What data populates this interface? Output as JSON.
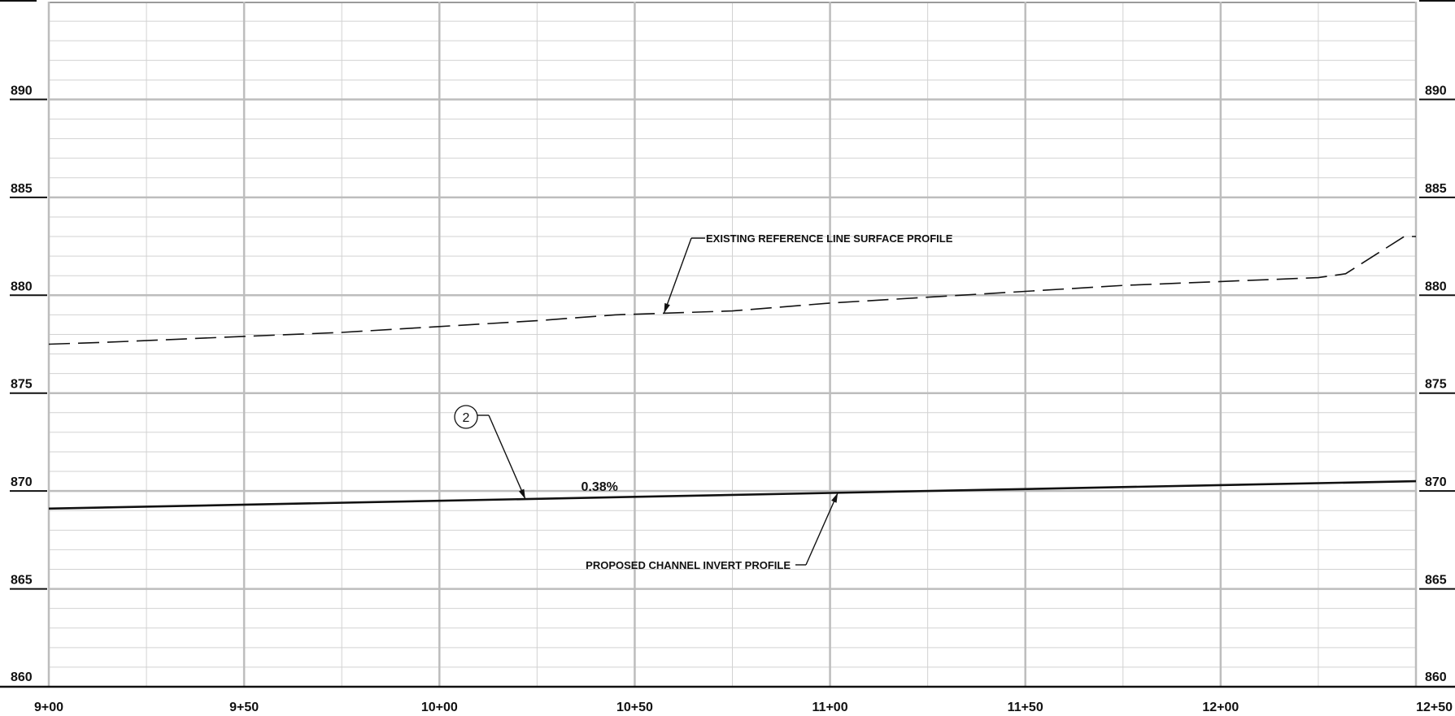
{
  "chart_data": {
    "type": "line",
    "title": "",
    "xlabel": "",
    "ylabel": "",
    "x_ticks": [
      {
        "sta": 900,
        "label": "9+00"
      },
      {
        "sta": 950,
        "label": "9+50"
      },
      {
        "sta": 1000,
        "label": "10+00"
      },
      {
        "sta": 1050,
        "label": "10+50"
      },
      {
        "sta": 1100,
        "label": "11+00"
      },
      {
        "sta": 1150,
        "label": "11+50"
      },
      {
        "sta": 1200,
        "label": "12+00"
      },
      {
        "sta": 1250,
        "label": "12+50"
      }
    ],
    "y_ticks": [
      860,
      865,
      870,
      875,
      880,
      885,
      890
    ],
    "xlim": [
      900,
      1250
    ],
    "ylim": [
      860,
      895
    ],
    "minor_x_step": 25,
    "minor_y_step": 1,
    "grid": true,
    "series": [
      {
        "name": "EXISTING REFERENCE LINE SURFACE PROFILE",
        "style": "dashed",
        "x": [
          900,
          915,
          950,
          975,
          1000,
          1025,
          1045,
          1075,
          1100,
          1125,
          1150,
          1175,
          1200,
          1225,
          1232,
          1247,
          1250
        ],
        "y": [
          877.5,
          877.6,
          877.9,
          878.1,
          878.4,
          878.7,
          879.0,
          879.2,
          879.6,
          879.9,
          880.2,
          880.5,
          880.7,
          880.9,
          881.1,
          883.0,
          883.0
        ]
      },
      {
        "name": "PROPOSED CHANNEL INVERT PROFILE",
        "style": "solid",
        "x": [
          900,
          1250
        ],
        "y": [
          869.1,
          870.5
        ]
      }
    ],
    "annotations": {
      "existing_label": "EXISTING REFERENCE LINE SURFACE PROFILE",
      "proposed_label": "PROPOSED CHANNEL INVERT PROFILE",
      "grade_label": "0.38%",
      "callout_number": "2"
    }
  }
}
